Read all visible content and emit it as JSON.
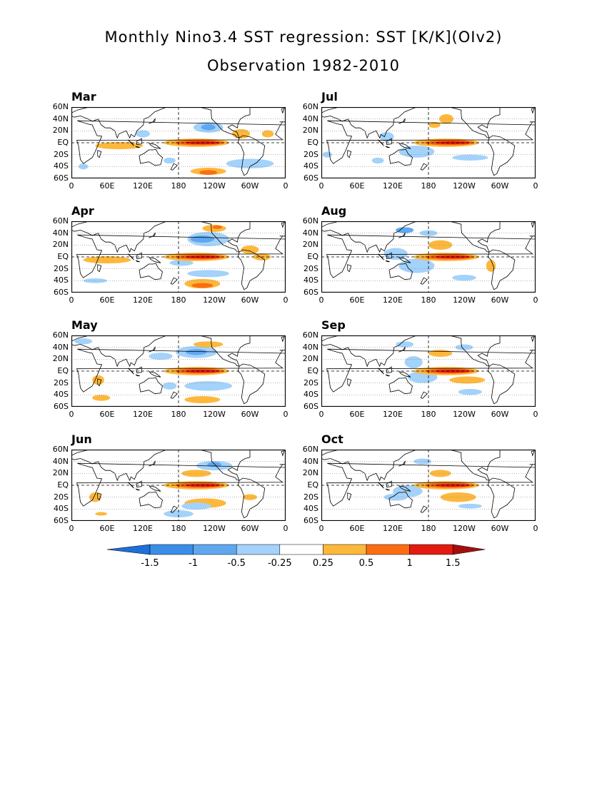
{
  "title": {
    "line1": "Monthly Nino3.4 SST regression: SST [K/K](OIv2)",
    "line2": "Observation 1982-2010"
  },
  "lat_ticks": [
    "60N",
    "40N",
    "20N",
    "EQ",
    "20S",
    "40S",
    "60S"
  ],
  "lon_ticks": [
    "0",
    "60E",
    "120E",
    "180",
    "120W",
    "60W",
    "0"
  ],
  "panels": [
    {
      "month": "Mar",
      "column": "left",
      "row": 0
    },
    {
      "month": "Apr",
      "column": "left",
      "row": 1
    },
    {
      "month": "May",
      "column": "left",
      "row": 2
    },
    {
      "month": "Jun",
      "column": "left",
      "row": 3
    },
    {
      "month": "Jul",
      "column": "right",
      "row": 0
    },
    {
      "month": "Aug",
      "column": "right",
      "row": 1
    },
    {
      "month": "Sep",
      "column": "right",
      "row": 2
    },
    {
      "month": "Oct",
      "column": "right",
      "row": 3
    }
  ],
  "colorbar": {
    "labels": [
      "-1.5",
      "-1",
      "-0.5",
      "-0.25",
      "0.25",
      "0.5",
      "1",
      "1.5"
    ],
    "colors": [
      "#1e6fd9",
      "#3a8ee8",
      "#5fa8f0",
      "#a3d2fa",
      "#ffffff",
      "#fdb83c",
      "#fc6d12",
      "#e31a10",
      "#a50f0a"
    ]
  },
  "colors": {
    "neg_strong": "#3a8ee8",
    "neg_mid": "#5fa8f0",
    "neg_weak": "#a3d2fa",
    "pos_weak": "#fdb83c",
    "pos_mid": "#fc6d12",
    "pos_strong": "#e31a10"
  }
}
